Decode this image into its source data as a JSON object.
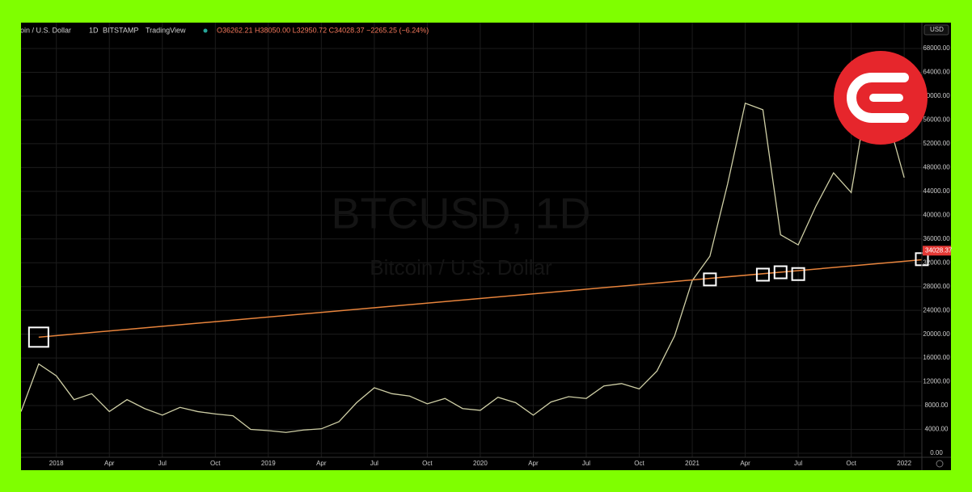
{
  "chart_data": {
    "type": "line",
    "header": {
      "symbol": "Bitcoin / U.S. Dollar",
      "interval": "1D",
      "exchange": "BITSTAMP",
      "source": "TradingView",
      "ohlc": "O36262.21 H38050.00 L32950.72 C34028.37 −2265.25 (−6.24%)"
    },
    "watermark": {
      "title": "BTCUSD, 1D",
      "subtitle": "Bitcoin / U.S. Dollar"
    },
    "currency": "USD",
    "x": [
      "2017-11",
      "2017-12",
      "2018-01",
      "2018-02",
      "2018-03",
      "2018-04",
      "2018-05",
      "2018-06",
      "2018-07",
      "2018-08",
      "2018-09",
      "2018-10",
      "2018-11",
      "2018-12",
      "2019-01",
      "2019-02",
      "2019-03",
      "2019-04",
      "2019-05",
      "2019-06",
      "2019-07",
      "2019-08",
      "2019-09",
      "2019-10",
      "2019-11",
      "2019-12",
      "2020-01",
      "2020-02",
      "2020-03",
      "2020-04",
      "2020-05",
      "2020-06",
      "2020-07",
      "2020-08",
      "2020-09",
      "2020-10",
      "2020-11",
      "2020-12",
      "2021-01",
      "2021-02",
      "2021-03",
      "2021-04",
      "2021-05",
      "2021-06",
      "2021-07",
      "2021-08",
      "2021-09",
      "2021-10",
      "2021-11",
      "2021-12",
      "2022-01"
    ],
    "values": [
      7000,
      15000,
      13000,
      9000,
      10000,
      7000,
      9000,
      7500,
      6400,
      7700,
      7000,
      6600,
      6300,
      4000,
      3800,
      3500,
      3900,
      4100,
      5300,
      8500,
      11000,
      10000,
      9600,
      8300,
      9200,
      7500,
      7200,
      9400,
      8500,
      6400,
      8600,
      9500,
      9200,
      11300,
      11700,
      10800,
      13800,
      19700,
      29000,
      33100,
      45200,
      58800,
      57700,
      36700,
      35000,
      41500,
      47100,
      43800,
      61300,
      57000,
      46300
    ],
    "color": "#cfcfa6",
    "last_price": 34028.37,
    "trendline": {
      "x": [
        "2017-12",
        "2022-02"
      ],
      "values": [
        19500,
        32500
      ],
      "color": "#e8843c"
    },
    "highlights": {
      "x": [
        "2017-12",
        "2021-02",
        "2021-05",
        "2021-06",
        "2021-07",
        "2022-02"
      ],
      "values": [
        19500,
        29200,
        30000,
        30400,
        30100,
        32600
      ]
    },
    "xlim": [
      "2017-11",
      "2022-02"
    ],
    "xticks": [
      {
        "value": "2018-01",
        "label": "2018"
      },
      {
        "value": "2018-04",
        "label": "Apr"
      },
      {
        "value": "2018-07",
        "label": "Jul"
      },
      {
        "value": "2018-10",
        "label": "Oct"
      },
      {
        "value": "2019-01",
        "label": "2019"
      },
      {
        "value": "2019-04",
        "label": "Apr"
      },
      {
        "value": "2019-07",
        "label": "Jul"
      },
      {
        "value": "2019-10",
        "label": "Oct"
      },
      {
        "value": "2020-01",
        "label": "2020"
      },
      {
        "value": "2020-04",
        "label": "Apr"
      },
      {
        "value": "2020-07",
        "label": "Jul"
      },
      {
        "value": "2020-10",
        "label": "Oct"
      },
      {
        "value": "2021-01",
        "label": "2021"
      },
      {
        "value": "2021-04",
        "label": "Apr"
      },
      {
        "value": "2021-07",
        "label": "Jul"
      },
      {
        "value": "2021-10",
        "label": "Oct"
      },
      {
        "value": "2022-01",
        "label": "2022"
      }
    ],
    "ylim": [
      -679,
      72343
    ],
    "yticks": [
      {
        "value": 0,
        "label": "0.00"
      },
      {
        "value": 4000,
        "label": "4000.00"
      },
      {
        "value": 8000,
        "label": "8000.00"
      },
      {
        "value": 12000,
        "label": "12000.00"
      },
      {
        "value": 16000,
        "label": "16000.00"
      },
      {
        "value": 20000,
        "label": "20000.00"
      },
      {
        "value": 24000,
        "label": "24000.00"
      },
      {
        "value": 28000,
        "label": "28000.00"
      },
      {
        "value": 32000,
        "label": "32000.00"
      },
      {
        "value": 36000,
        "label": "36000.00"
      },
      {
        "value": 40000,
        "label": "40000.00"
      },
      {
        "value": 44000,
        "label": "44000.00"
      },
      {
        "value": 48000,
        "label": "48000.00"
      },
      {
        "value": 52000,
        "label": "52000.00"
      },
      {
        "value": 56000,
        "label": "56000.00"
      },
      {
        "value": 60000,
        "label": "60000.00"
      },
      {
        "value": 64000,
        "label": "64000.00"
      },
      {
        "value": 68000,
        "label": "68000.00"
      }
    ],
    "grid": true
  }
}
